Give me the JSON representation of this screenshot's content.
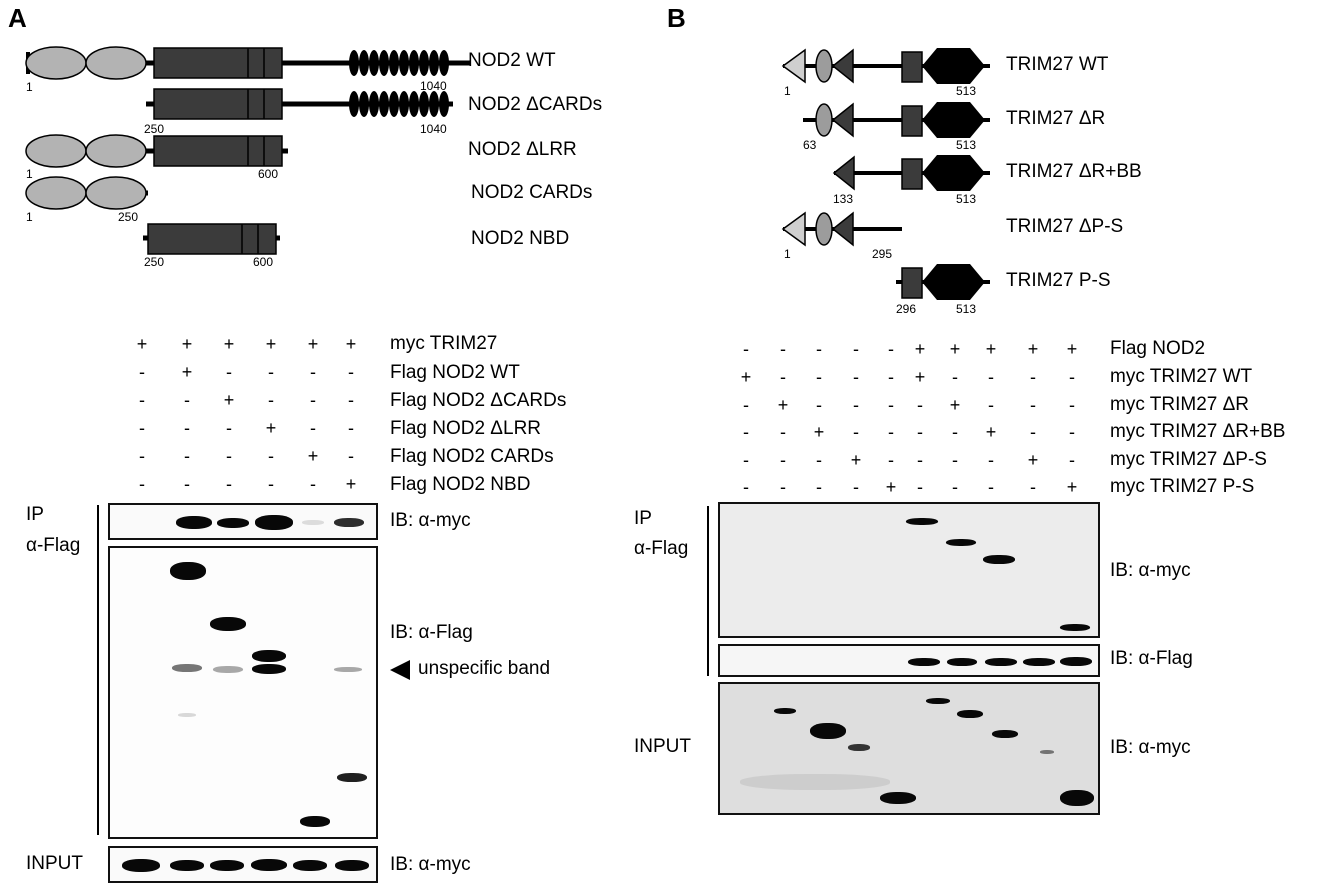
{
  "panel_a": {
    "letter": "A",
    "constructs": [
      {
        "name": "NOD2 WT",
        "start": "1",
        "end": "1040"
      },
      {
        "name": "NOD2 ΔCARDs",
        "start": "250",
        "end": "1040"
      },
      {
        "name": "NOD2 ΔLRR",
        "start": "1",
        "end": "600"
      },
      {
        "name": "NOD2 CARDs",
        "start": "1",
        "end": "250"
      },
      {
        "name": "NOD2 NBD",
        "start": "250",
        "end": "600"
      }
    ],
    "matrix": {
      "rows": [
        {
          "label": "myc TRIM27",
          "marks": [
            "+",
            "+",
            "+",
            "+",
            "+",
            "+"
          ]
        },
        {
          "label": "Flag NOD2 WT",
          "marks": [
            "-",
            "+",
            "-",
            "-",
            "-",
            "-"
          ]
        },
        {
          "label": "Flag NOD2 ΔCARDs",
          "marks": [
            "-",
            "-",
            "+",
            "-",
            "-",
            "-"
          ]
        },
        {
          "label": "Flag NOD2 ΔLRR",
          "marks": [
            "-",
            "-",
            "-",
            "+",
            "-",
            "-"
          ]
        },
        {
          "label": "Flag NOD2 CARDs",
          "marks": [
            "-",
            "-",
            "-",
            "-",
            "+",
            "-"
          ]
        },
        {
          "label": "Flag NOD2 NBD",
          "marks": [
            "-",
            "-",
            "-",
            "-",
            "-",
            "+"
          ]
        }
      ]
    },
    "ip_label_1": "IP",
    "ip_label_2": "α-Flag",
    "input_label": "INPUT",
    "ib_myc": "IB: α-myc",
    "ib_flag": "IB: α-Flag",
    "unspecific": "unspecific band",
    "ib_input_myc": "IB: α-myc"
  },
  "panel_b": {
    "letter": "B",
    "constructs": [
      {
        "name": "TRIM27 WT",
        "start": "1",
        "end": "513"
      },
      {
        "name": "TRIM27 ΔR",
        "start": "63",
        "end": "513"
      },
      {
        "name": "TRIM27 ΔR+BB",
        "start": "133",
        "end": "513"
      },
      {
        "name": "TRIM27 ΔP-S",
        "start": "1",
        "end": "295"
      },
      {
        "name": "TRIM27 P-S",
        "start": "296",
        "end": "513"
      }
    ],
    "matrix": {
      "rows": [
        {
          "label": "Flag NOD2",
          "marks": [
            "-",
            "-",
            "-",
            "-",
            "-",
            "+",
            "+",
            "+",
            "+",
            "+"
          ]
        },
        {
          "label": "myc TRIM27 WT",
          "marks": [
            "+",
            "-",
            "-",
            "-",
            "-",
            "+",
            "-",
            "-",
            "-",
            "-"
          ]
        },
        {
          "label": "myc TRIM27 ΔR",
          "marks": [
            "-",
            "+",
            "-",
            "-",
            "-",
            "-",
            "+",
            "-",
            "-",
            "-"
          ]
        },
        {
          "label": "myc TRIM27 ΔR+BB",
          "marks": [
            "-",
            "-",
            "+",
            "-",
            "-",
            "-",
            "-",
            "+",
            "-",
            "-"
          ]
        },
        {
          "label": "myc TRIM27 ΔP-S",
          "marks": [
            "-",
            "-",
            "-",
            "+",
            "-",
            "-",
            "-",
            "-",
            "+",
            "-"
          ]
        },
        {
          "label": "myc TRIM27 P-S",
          "marks": [
            "-",
            "-",
            "-",
            "-",
            "+",
            "-",
            "-",
            "-",
            "-",
            "+"
          ]
        }
      ]
    },
    "ip_label_1": "IP",
    "ip_label_2": "α-Flag",
    "input_label": "INPUT",
    "ib_myc": "IB: α-myc",
    "ib_flag": "IB: α-Flag",
    "ib_input_myc": "IB: α-myc"
  },
  "colors": {
    "domain_light": "#b3b3b3",
    "domain_dark": "#3b3b3b",
    "band": "#080808"
  }
}
